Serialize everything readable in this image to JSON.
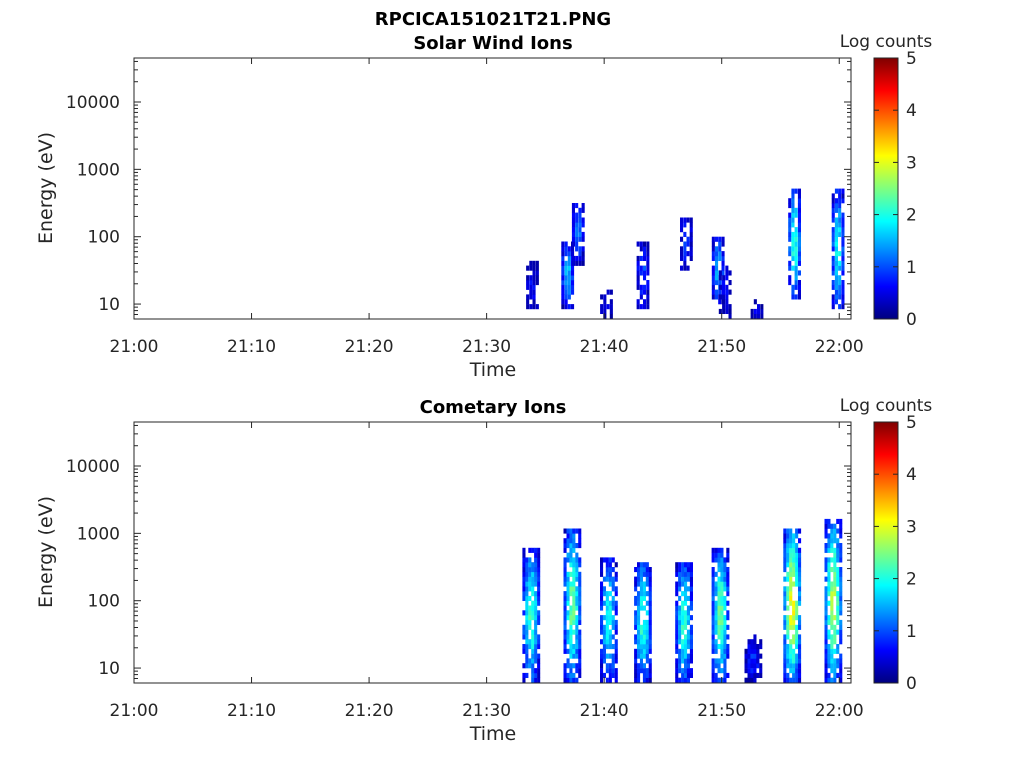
{
  "figure": {
    "title": "RPCICA151021T21.PNG"
  },
  "colormap": {
    "name": "jet",
    "stops": [
      "#00007f",
      "#0000ff",
      "#007fff",
      "#00ffff",
      "#7fff7f",
      "#ffff00",
      "#ff7f00",
      "#ff0000",
      "#7f0000"
    ]
  },
  "chart_data": [
    {
      "type": "heatmap",
      "title": "Solar Wind Ions",
      "xlabel": "Time",
      "ylabel": "Energy (eV)",
      "x_ticks": [
        "21:00",
        "21:10",
        "21:20",
        "21:30",
        "21:40",
        "21:50",
        "22:00"
      ],
      "x_tick_minutes": [
        0,
        10,
        20,
        30,
        40,
        50,
        60
      ],
      "xlim_minutes": [
        0,
        61
      ],
      "y_scale": "log",
      "y_ticks": [
        "10",
        "100",
        "1000",
        "10000"
      ],
      "y_tick_values": [
        10,
        100,
        1000,
        10000
      ],
      "ylim": [
        6,
        45000
      ],
      "colorbar": {
        "label": "Log counts",
        "range": [
          0,
          5
        ],
        "ticks": [
          "0",
          "1",
          "2",
          "3",
          "4",
          "5"
        ]
      },
      "events": [
        {
          "t": 33.4,
          "e_low": 30,
          "e_high": 30,
          "peak": 0.6
        },
        {
          "t": 33.9,
          "e_low": 8,
          "e_high": 40,
          "peak": 0.6
        },
        {
          "t": 36.9,
          "e_low": 8,
          "e_high": 75,
          "peak": 1.6
        },
        {
          "t": 37.8,
          "e_low": 35,
          "e_high": 280,
          "peak": 1.2
        },
        {
          "t": 40.2,
          "e_low": 6,
          "e_high": 14,
          "peak": 0.4
        },
        {
          "t": 43.3,
          "e_low": 8,
          "e_high": 70,
          "peak": 1.0
        },
        {
          "t": 47.0,
          "e_low": 30,
          "e_high": 170,
          "peak": 0.9
        },
        {
          "t": 49.7,
          "e_low": 10,
          "e_high": 90,
          "peak": 1.5
        },
        {
          "t": 50.3,
          "e_low": 6,
          "e_high": 35,
          "peak": 0.5
        },
        {
          "t": 53.0,
          "e_low": 6,
          "e_high": 10,
          "peak": 0.7
        },
        {
          "t": 56.2,
          "e_low": 12,
          "e_high": 450,
          "peak": 2.1
        },
        {
          "t": 59.9,
          "e_low": 8,
          "e_high": 450,
          "peak": 1.9
        }
      ]
    },
    {
      "type": "heatmap",
      "title": "Cometary Ions",
      "xlabel": "Time",
      "ylabel": "Energy (eV)",
      "x_ticks": [
        "21:00",
        "21:10",
        "21:20",
        "21:30",
        "21:40",
        "21:50",
        "22:00"
      ],
      "x_tick_minutes": [
        0,
        10,
        20,
        30,
        40,
        50,
        60
      ],
      "xlim_minutes": [
        0,
        61
      ],
      "y_scale": "log",
      "y_ticks": [
        "10",
        "100",
        "1000",
        "10000"
      ],
      "y_tick_values": [
        10,
        100,
        1000,
        10000
      ],
      "ylim": [
        6,
        45000
      ],
      "colorbar": {
        "label": "Log counts",
        "range": [
          0,
          5
        ],
        "ticks": [
          "0",
          "1",
          "2",
          "3",
          "4",
          "5"
        ]
      },
      "events": [
        {
          "t": 33.8,
          "e_low": 6,
          "e_high": 500,
          "peak": 2.2
        },
        {
          "t": 37.3,
          "e_low": 6,
          "e_high": 1100,
          "peak": 2.4
        },
        {
          "t": 40.4,
          "e_low": 6,
          "e_high": 400,
          "peak": 1.9
        },
        {
          "t": 43.3,
          "e_low": 6,
          "e_high": 350,
          "peak": 2.1
        },
        {
          "t": 46.8,
          "e_low": 6,
          "e_high": 350,
          "peak": 2.1
        },
        {
          "t": 49.9,
          "e_low": 6,
          "e_high": 500,
          "peak": 2.4
        },
        {
          "t": 52.7,
          "e_low": 6,
          "e_high": 30,
          "peak": 0.8
        },
        {
          "t": 56.0,
          "e_low": 6,
          "e_high": 1100,
          "peak": 3.1
        },
        {
          "t": 59.5,
          "e_low": 6,
          "e_high": 1400,
          "peak": 2.8
        }
      ]
    }
  ]
}
